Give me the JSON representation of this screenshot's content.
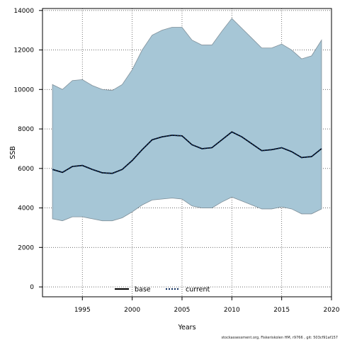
{
  "chart_data": {
    "type": "area",
    "xlabel": "Years",
    "ylabel": "SSB",
    "xlim": [
      1991.0,
      2020.0
    ],
    "ylim": [
      -500,
      14100
    ],
    "xticks": [
      1995,
      2000,
      2005,
      2010,
      2015,
      2020
    ],
    "yticks": [
      0,
      2000,
      4000,
      6000,
      8000,
      10000,
      12000,
      14000
    ],
    "grid": true,
    "legend_position": "bottom-left",
    "band_color": "#a6c6d6",
    "band_edge_color": "#7f8f99",
    "x": [
      1992,
      1993,
      1994,
      1995,
      1996,
      1997,
      1998,
      1999,
      2000,
      2001,
      2002,
      2003,
      2004,
      2005,
      2006,
      2007,
      2008,
      2009,
      2010,
      2011,
      2012,
      2013,
      2014,
      2015,
      2016,
      2017,
      2018,
      2019
    ],
    "band_upper": [
      10250,
      10000,
      10450,
      10500,
      10200,
      10000,
      9950,
      10250,
      11000,
      12000,
      12750,
      13000,
      13150,
      13150,
      12500,
      12250,
      12250,
      12950,
      13600,
      13100,
      12600,
      12100,
      12100,
      12300,
      12000,
      11550,
      11700,
      12500
    ],
    "band_lower": [
      3450,
      3350,
      3550,
      3550,
      3450,
      3350,
      3350,
      3500,
      3800,
      4150,
      4400,
      4450,
      4500,
      4450,
      4100,
      4000,
      4000,
      4300,
      4550,
      4350,
      4150,
      3950,
      3950,
      4050,
      3950,
      3700,
      3700,
      3950
    ],
    "series": [
      {
        "name": "base",
        "color": "#000000",
        "style": "solid",
        "values": [
          5950,
          5800,
          6100,
          6150,
          5950,
          5780,
          5750,
          5950,
          6400,
          6950,
          7450,
          7600,
          7680,
          7650,
          7200,
          7000,
          7050,
          7450,
          7850,
          7600,
          7250,
          6900,
          6950,
          7050,
          6850,
          6550,
          6600,
          7000
        ]
      },
      {
        "name": "current",
        "color": "#0a2a5a",
        "style": "dotted",
        "values": [
          5950,
          5800,
          6100,
          6150,
          5950,
          5780,
          5750,
          5950,
          6400,
          6950,
          7450,
          7600,
          7680,
          7650,
          7200,
          7000,
          7050,
          7450,
          7850,
          7600,
          7250,
          6900,
          6950,
          7050,
          6850,
          6550,
          6600,
          7000
        ]
      }
    ]
  },
  "footer": "stockassessment.org, Fiskeriskolen HM, r9766 , git: 503cf91af157"
}
